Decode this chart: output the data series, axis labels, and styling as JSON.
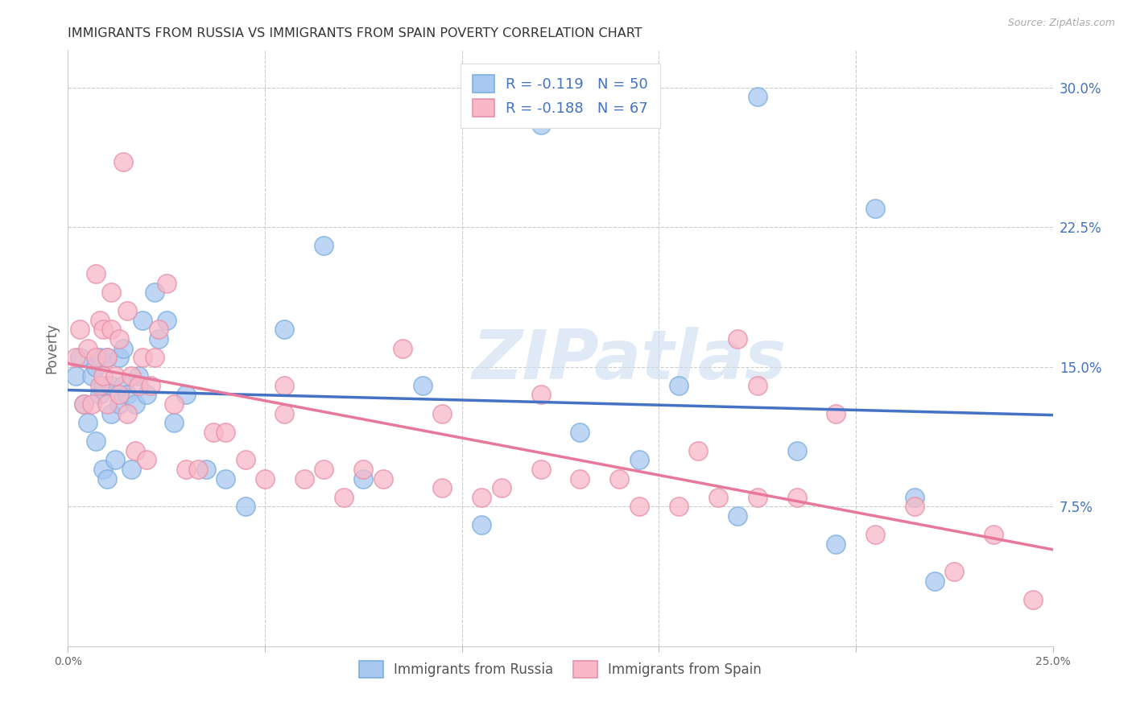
{
  "title": "IMMIGRANTS FROM RUSSIA VS IMMIGRANTS FROM SPAIN POVERTY CORRELATION CHART",
  "source": "Source: ZipAtlas.com",
  "ylabel": "Poverty",
  "right_yticks": [
    "30.0%",
    "22.5%",
    "15.0%",
    "7.5%"
  ],
  "right_ytick_vals": [
    0.3,
    0.225,
    0.15,
    0.075
  ],
  "xlim": [
    0.0,
    0.25
  ],
  "ylim": [
    0.0,
    0.32
  ],
  "legend_russia_R": "-0.119",
  "legend_russia_N": "50",
  "legend_spain_R": "-0.188",
  "legend_spain_N": "67",
  "color_russia_fill": "#a8c8f0",
  "color_russia_edge": "#7aaee0",
  "color_spain_fill": "#f8b8c8",
  "color_spain_edge": "#e890a8",
  "color_russia_line": "#4472c4",
  "color_spain_line": "#e8789a",
  "color_label_blue": "#4472c4",
  "watermark": "ZIPatlas",
  "russia_x": [
    0.002,
    0.003,
    0.004,
    0.005,
    0.006,
    0.007,
    0.007,
    0.008,
    0.008,
    0.009,
    0.009,
    0.01,
    0.01,
    0.011,
    0.011,
    0.012,
    0.013,
    0.013,
    0.014,
    0.014,
    0.015,
    0.016,
    0.017,
    0.018,
    0.019,
    0.02,
    0.022,
    0.023,
    0.025,
    0.027,
    0.03,
    0.035,
    0.04,
    0.045,
    0.055,
    0.065,
    0.075,
    0.09,
    0.105,
    0.12,
    0.13,
    0.145,
    0.155,
    0.17,
    0.175,
    0.185,
    0.195,
    0.205,
    0.215,
    0.22
  ],
  "russia_y": [
    0.145,
    0.155,
    0.13,
    0.12,
    0.145,
    0.11,
    0.15,
    0.135,
    0.155,
    0.095,
    0.14,
    0.09,
    0.155,
    0.14,
    0.125,
    0.1,
    0.13,
    0.155,
    0.14,
    0.16,
    0.135,
    0.095,
    0.13,
    0.145,
    0.175,
    0.135,
    0.19,
    0.165,
    0.175,
    0.12,
    0.135,
    0.095,
    0.09,
    0.075,
    0.17,
    0.215,
    0.09,
    0.14,
    0.065,
    0.28,
    0.115,
    0.1,
    0.14,
    0.07,
    0.295,
    0.105,
    0.055,
    0.235,
    0.08,
    0.035
  ],
  "spain_x": [
    0.002,
    0.003,
    0.004,
    0.005,
    0.006,
    0.007,
    0.007,
    0.008,
    0.008,
    0.009,
    0.009,
    0.01,
    0.01,
    0.011,
    0.011,
    0.012,
    0.013,
    0.013,
    0.014,
    0.015,
    0.015,
    0.016,
    0.017,
    0.018,
    0.019,
    0.02,
    0.021,
    0.022,
    0.023,
    0.025,
    0.027,
    0.03,
    0.033,
    0.037,
    0.04,
    0.045,
    0.05,
    0.055,
    0.06,
    0.07,
    0.075,
    0.085,
    0.095,
    0.11,
    0.12,
    0.13,
    0.145,
    0.155,
    0.165,
    0.175,
    0.185,
    0.195,
    0.205,
    0.215,
    0.225,
    0.235,
    0.245,
    0.17,
    0.175,
    0.16,
    0.14,
    0.12,
    0.105,
    0.095,
    0.08,
    0.065,
    0.055
  ],
  "spain_y": [
    0.155,
    0.17,
    0.13,
    0.16,
    0.13,
    0.2,
    0.155,
    0.175,
    0.14,
    0.145,
    0.17,
    0.13,
    0.155,
    0.17,
    0.19,
    0.145,
    0.165,
    0.135,
    0.26,
    0.18,
    0.125,
    0.145,
    0.105,
    0.14,
    0.155,
    0.1,
    0.14,
    0.155,
    0.17,
    0.195,
    0.13,
    0.095,
    0.095,
    0.115,
    0.115,
    0.1,
    0.09,
    0.14,
    0.09,
    0.08,
    0.095,
    0.16,
    0.085,
    0.085,
    0.095,
    0.09,
    0.075,
    0.075,
    0.08,
    0.14,
    0.08,
    0.125,
    0.06,
    0.075,
    0.04,
    0.06,
    0.025,
    0.165,
    0.08,
    0.105,
    0.09,
    0.135,
    0.08,
    0.125,
    0.09,
    0.095,
    0.125
  ]
}
